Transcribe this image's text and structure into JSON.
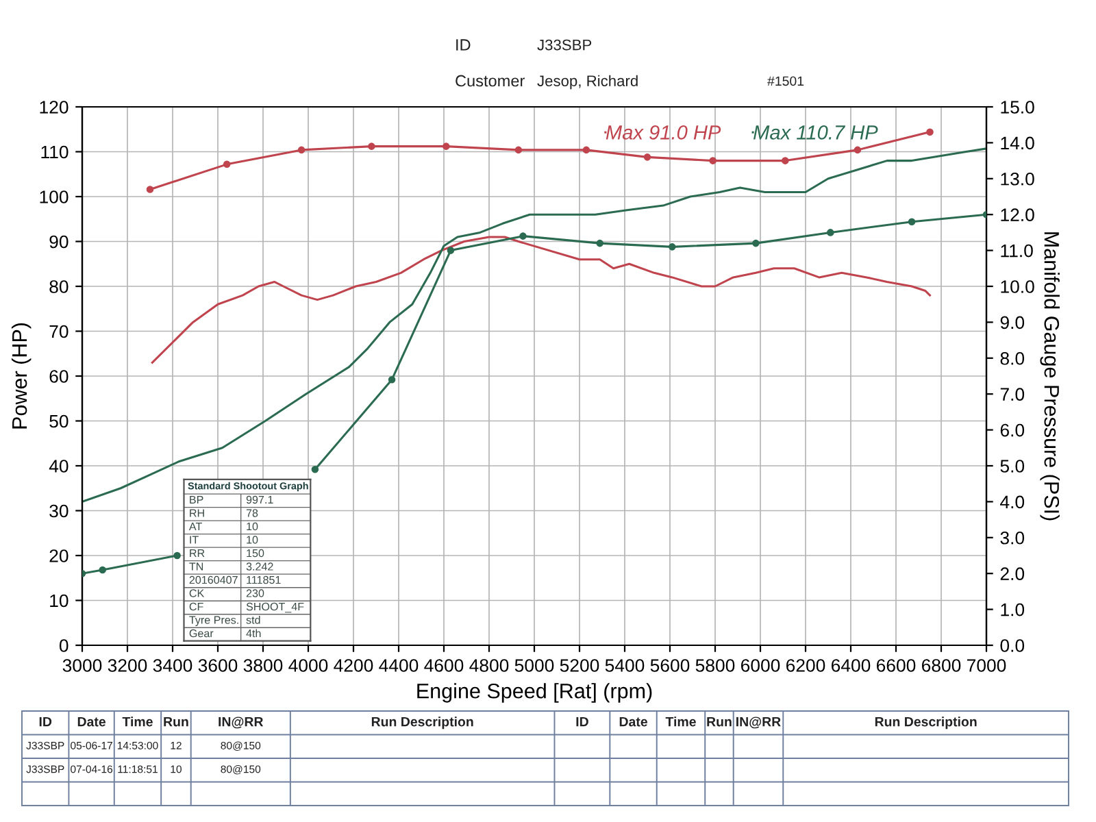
{
  "chart_data": [
    {
      "type": "other",
      "annotations": [
        "ID",
        "J33SBP",
        "Customer",
        "Jesop, Richard",
        "#1501"
      ]
    },
    {
      "type": "line",
      "xlabel": "Engine Speed [Rat] (rpm)",
      "ylabel": "Power (HP)",
      "y2label": "Manifold Gauge Pressure (PSI)",
      "xlim": [
        3000,
        7000
      ],
      "xticks": [
        3000,
        3200,
        3400,
        3600,
        3800,
        4000,
        4200,
        4400,
        4600,
        4800,
        5000,
        5200,
        5400,
        5600,
        5800,
        6000,
        6200,
        6400,
        6600,
        6800,
        7000
      ],
      "ylim": [
        0,
        120
      ],
      "yticks": [
        0,
        10,
        20,
        30,
        40,
        50,
        60,
        70,
        80,
        90,
        100,
        110,
        120
      ],
      "y2lim": [
        0,
        15
      ],
      "y2ticks": [
        {
          "value": 0,
          "label": "0.0"
        },
        {
          "value": 1,
          "label": "1.0"
        },
        {
          "value": 2,
          "label": "2.0"
        },
        {
          "value": 3,
          "label": "3.0"
        },
        {
          "value": 4,
          "label": "4.0"
        },
        {
          "value": 5,
          "label": "5.0"
        },
        {
          "value": 6,
          "label": "6.0"
        },
        {
          "value": 7,
          "label": "7.0"
        },
        {
          "value": 8,
          "label": "8.0"
        },
        {
          "value": 9,
          "label": "9.0"
        },
        {
          "value": 10,
          "label": "10.0"
        },
        {
          "value": 11,
          "label": "11.0"
        },
        {
          "value": 12,
          "label": "12.0"
        },
        {
          "value": 13,
          "label": "13.0"
        },
        {
          "value": 14,
          "label": "14.0"
        },
        {
          "value": 15,
          "label": "15.0"
        }
      ],
      "grid": true,
      "legend": "top right",
      "series": [
        {
          "name": "Max 91.0 HP",
          "color": "#c0444e",
          "x": [
            3310,
            3410,
            3490,
            3600,
            3710,
            3780,
            3850,
            3890,
            3970,
            4040,
            4110,
            4210,
            4300,
            4410,
            4510,
            4590,
            4690,
            4800,
            4870,
            4930,
            5200,
            5290,
            5350,
            5420,
            5530,
            5610,
            5740,
            5800,
            5880,
            5980,
            6060,
            6150,
            6260,
            6360,
            6470,
            6560,
            6670,
            6730,
            6750
          ],
          "values": [
            63,
            68,
            72,
            76,
            78,
            80,
            81,
            80,
            78,
            77,
            78,
            80,
            81,
            83,
            86,
            88,
            90,
            91.0,
            91,
            90,
            86,
            86,
            84,
            85,
            83,
            82,
            80,
            80,
            82,
            83,
            84,
            84,
            82,
            83,
            82,
            81,
            80,
            79,
            78
          ]
        },
        {
          "name": "Max 110.7 HP",
          "color": "#2b6b52",
          "x": [
            3000,
            3170,
            3300,
            3430,
            3620,
            3810,
            3990,
            4180,
            4260,
            4360,
            4460,
            4540,
            4600,
            4660,
            4760,
            4860,
            4980,
            5110,
            5270,
            5410,
            5570,
            5690,
            5820,
            5910,
            6020,
            6110,
            6200,
            6300,
            6430,
            6560,
            6670,
            6790,
            6910,
            7000
          ],
          "values": [
            32,
            35,
            38,
            41,
            44,
            50,
            56,
            62,
            66,
            72,
            76,
            83,
            89,
            91,
            92,
            94,
            96,
            96,
            96,
            97,
            98,
            100,
            101,
            102,
            101,
            101,
            101,
            104,
            106,
            108,
            108,
            109,
            110,
            110.7
          ]
        },
        {
          "color": "#c0444e",
          "axis": "y2",
          "marker": "circle",
          "x": [
            3300,
            3640,
            3970,
            4280,
            4610,
            4930,
            5230,
            5500,
            5790,
            6110,
            6430,
            6750
          ],
          "values": [
            12.7,
            13.4,
            13.8,
            13.9,
            13.9,
            13.8,
            13.8,
            13.6,
            13.5,
            13.5,
            13.8,
            14.3
          ]
        },
        {
          "color": "#2b6b52",
          "axis": "y2",
          "marker": "circle",
          "x": [
            3000,
            3090,
            3420,
            3700,
            4030,
            4370,
            4630,
            4950,
            5290,
            5610,
            5980,
            6310,
            6670,
            7000
          ],
          "values": [
            2.0,
            2.1,
            2.5,
            null,
            4.9,
            7.4,
            11.0,
            11.4,
            11.2,
            11.1,
            11.2,
            11.5,
            11.8,
            12.0
          ]
        }
      ]
    },
    {
      "type": "other",
      "title": "Standard Shootout Graph",
      "annotations": [
        "BP",
        "997.1",
        "RH",
        "78",
        "AT",
        "10",
        "IT",
        "10",
        "RR",
        "150",
        "TN",
        "3.242",
        "20160407",
        "111851",
        "CK",
        "230",
        "CF",
        "SHOOT_4F",
        "Tyre Pres.",
        "std",
        "Gear",
        "4th"
      ]
    },
    {
      "type": "other",
      "annotations": [
        "ID",
        "Date",
        "Time",
        "Run",
        "IN@RR",
        "Run Description",
        "ID",
        "Date",
        "Time",
        "Run",
        "IN@RR",
        "Run Description",
        "J33SBP",
        "05-06-17",
        "14:53:00",
        "12",
        "80@150",
        "J33SBP",
        "07-04-16",
        "11:18:51",
        "10",
        "80@150"
      ]
    }
  ]
}
